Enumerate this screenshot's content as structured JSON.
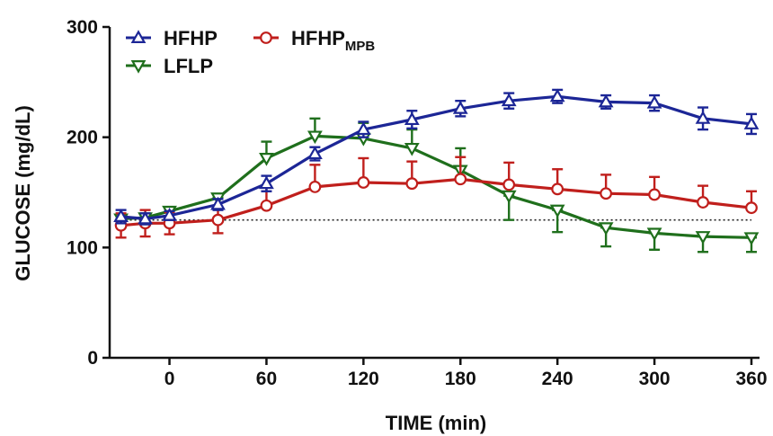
{
  "chart_data": {
    "type": "line",
    "xlabel": "TIME (min)",
    "ylabel": "GLUCOSE (mg/dL)",
    "xlim": [
      -37,
      365
    ],
    "ylim": [
      0,
      300
    ],
    "x_ticks": [
      0,
      60,
      120,
      180,
      240,
      300,
      360
    ],
    "y_ticks": [
      0,
      100,
      200,
      300
    ],
    "reference_line": {
      "y": 125,
      "style": "dotted"
    },
    "legend_position": "top-left",
    "series": [
      {
        "name": "HFHP",
        "marker": "triangle-up",
        "color": "#1c2696",
        "x": [
          -30,
          -15,
          0,
          30,
          60,
          90,
          120,
          150,
          180,
          210,
          240,
          270,
          300,
          330,
          360
        ],
        "y": [
          128,
          126,
          129,
          139,
          158,
          185,
          207,
          216,
          226,
          233,
          237,
          232,
          231,
          217,
          212
        ],
        "error": [
          6,
          5,
          4,
          5,
          7,
          6,
          7,
          8,
          7,
          7,
          6,
          6,
          7,
          10,
          9
        ]
      },
      {
        "name": "LFLP",
        "marker": "triangle-down",
        "color": "#1f6f1c",
        "x": [
          -30,
          -15,
          0,
          30,
          60,
          90,
          120,
          150,
          180,
          210,
          240,
          270,
          300,
          330,
          360
        ],
        "y": [
          126,
          127,
          133,
          145,
          181,
          201,
          199,
          190,
          170,
          147,
          134,
          118,
          113,
          110,
          109
        ],
        "error": [
          6,
          5,
          8,
          10,
          15,
          16,
          14,
          17,
          20,
          22,
          20,
          17,
          15,
          14,
          13
        ]
      },
      {
        "name": "HFHP",
        "name_subscript": "MPB",
        "marker": "circle",
        "color": "#c01f1c",
        "x": [
          -30,
          -15,
          0,
          30,
          60,
          90,
          120,
          150,
          180,
          210,
          240,
          270,
          300,
          330,
          360
        ],
        "y": [
          120,
          122,
          122,
          125,
          138,
          155,
          159,
          158,
          162,
          157,
          153,
          149,
          148,
          141,
          136
        ],
        "error": [
          11,
          12,
          10,
          12,
          17,
          20,
          22,
          20,
          20,
          20,
          18,
          17,
          16,
          15,
          15
        ]
      }
    ]
  }
}
